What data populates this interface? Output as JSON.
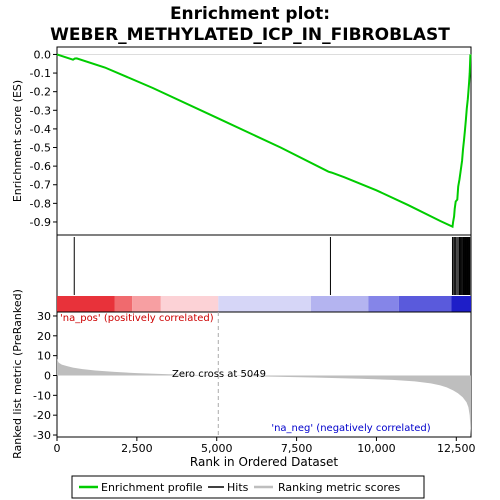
{
  "chart_data": {
    "type": "line",
    "title_line1": "Enrichment plot:",
    "title_line2": "WEBER_METHYLATED_ICP_IN_FIBROBLAST",
    "top_panel": {
      "ylabel": "Enrichment score (ES)",
      "ylim": [
        -0.97,
        0.04
      ],
      "yticks": [
        0.0,
        -0.1,
        -0.2,
        -0.3,
        -0.4,
        -0.5,
        -0.6,
        -0.7,
        -0.8,
        -0.9
      ],
      "ytick_labels": [
        "0.0",
        "-0.1",
        "-0.2",
        "-0.3",
        "-0.4",
        "-0.5",
        "-0.6",
        "-0.7",
        "-0.8",
        "-0.9"
      ],
      "series": {
        "name": "Enrichment profile",
        "color": "#00cc00",
        "x": [
          0,
          500,
          560,
          620,
          1500,
          3000,
          5000,
          7000,
          8500,
          8600,
          9000,
          10000,
          11000,
          12000,
          12380,
          12400,
          12430,
          12450,
          12480,
          12530,
          12560,
          12600,
          12640,
          12680,
          12710,
          12740,
          12770,
          12800,
          12830,
          12860,
          12880,
          12900,
          12920,
          12940
        ],
        "y": [
          0.0,
          -0.028,
          -0.022,
          -0.021,
          -0.07,
          -0.18,
          -0.34,
          -0.5,
          -0.63,
          -0.635,
          -0.66,
          -0.73,
          -0.81,
          -0.895,
          -0.925,
          -0.9,
          -0.87,
          -0.83,
          -0.79,
          -0.78,
          -0.71,
          -0.67,
          -0.62,
          -0.57,
          -0.51,
          -0.46,
          -0.41,
          -0.35,
          -0.29,
          -0.24,
          -0.2,
          -0.15,
          -0.1,
          0.0
        ]
      }
    },
    "hits": {
      "name": "Hits",
      "positions": [
        540,
        8560,
        12380,
        12420,
        12450,
        12480,
        12520,
        12560,
        12600,
        12630,
        12660,
        12690,
        12720,
        12740,
        12760,
        12780,
        12800,
        12820,
        12840,
        12860,
        12880,
        12900,
        12920
      ]
    },
    "heatmap_bar": {
      "segments": [
        {
          "start": 0,
          "end": 1800,
          "color": "#e8323a"
        },
        {
          "start": 1800,
          "end": 2350,
          "color": "#f06a6e"
        },
        {
          "start": 2350,
          "end": 3250,
          "color": "#f79fa2"
        },
        {
          "start": 3250,
          "end": 5049,
          "color": "#fcd2d6"
        },
        {
          "start": 5049,
          "end": 7950,
          "color": "#d6d6f7"
        },
        {
          "start": 7950,
          "end": 9750,
          "color": "#b4b4f0"
        },
        {
          "start": 9750,
          "end": 10700,
          "color": "#8585e8"
        },
        {
          "start": 10700,
          "end": 12350,
          "color": "#5a5adc"
        },
        {
          "start": 12350,
          "end": 12960,
          "color": "#1e1ec8"
        }
      ]
    },
    "bottom_panel": {
      "ylabel": "Ranked list metric (PreRanked)",
      "xlabel": "Rank in Ordered Dataset",
      "ylim": [
        -31,
        32
      ],
      "yticks": [
        30,
        20,
        10,
        0,
        -10,
        -20,
        -30
      ],
      "ytick_labels": [
        "30",
        "20",
        "10",
        "0",
        "-10",
        "-20",
        "-30"
      ],
      "series": {
        "name": "Ranking metric scores",
        "color": "#bebebe",
        "x": [
          0,
          50,
          150,
          300,
          500,
          800,
          1200,
          1800,
          2500,
          3500,
          5049,
          6500,
          8000,
          9500,
          10500,
          11200,
          11700,
          12000,
          12200,
          12400,
          12550,
          12700,
          12820,
          12880,
          12920,
          12940,
          12960
        ],
        "y": [
          8.5,
          6.5,
          5.5,
          4.8,
          4.0,
          3.2,
          2.5,
          1.8,
          1.2,
          0.6,
          0.0,
          -0.5,
          -1.0,
          -1.6,
          -2.2,
          -3.0,
          -4.0,
          -5.0,
          -6.0,
          -7.5,
          -9.0,
          -11.0,
          -13.5,
          -16.0,
          -20.0,
          -26.0,
          -30.0
        ]
      },
      "pos_label": "'na_pos' (positively correlated)",
      "pos_color": "#cc0000",
      "neg_label": "'na_neg' (negatively correlated)",
      "neg_color": "#0000cc",
      "zero_cross_label": "Zero cross at 5049",
      "zero_cross": 5049
    },
    "xlim": [
      0,
      12960
    ],
    "xticks": [
      0,
      2500,
      5000,
      7500,
      10000,
      12500
    ],
    "xtick_labels": [
      "0",
      "2,500",
      "5,000",
      "7,500",
      "10,000",
      "12,500"
    ],
    "legend": {
      "position": "bottom",
      "entries": [
        {
          "label": "Enrichment profile",
          "color": "#00cc00"
        },
        {
          "label": "Hits",
          "color": "#000000"
        },
        {
          "label": "Ranking metric scores",
          "color": "#bebebe"
        }
      ]
    }
  }
}
